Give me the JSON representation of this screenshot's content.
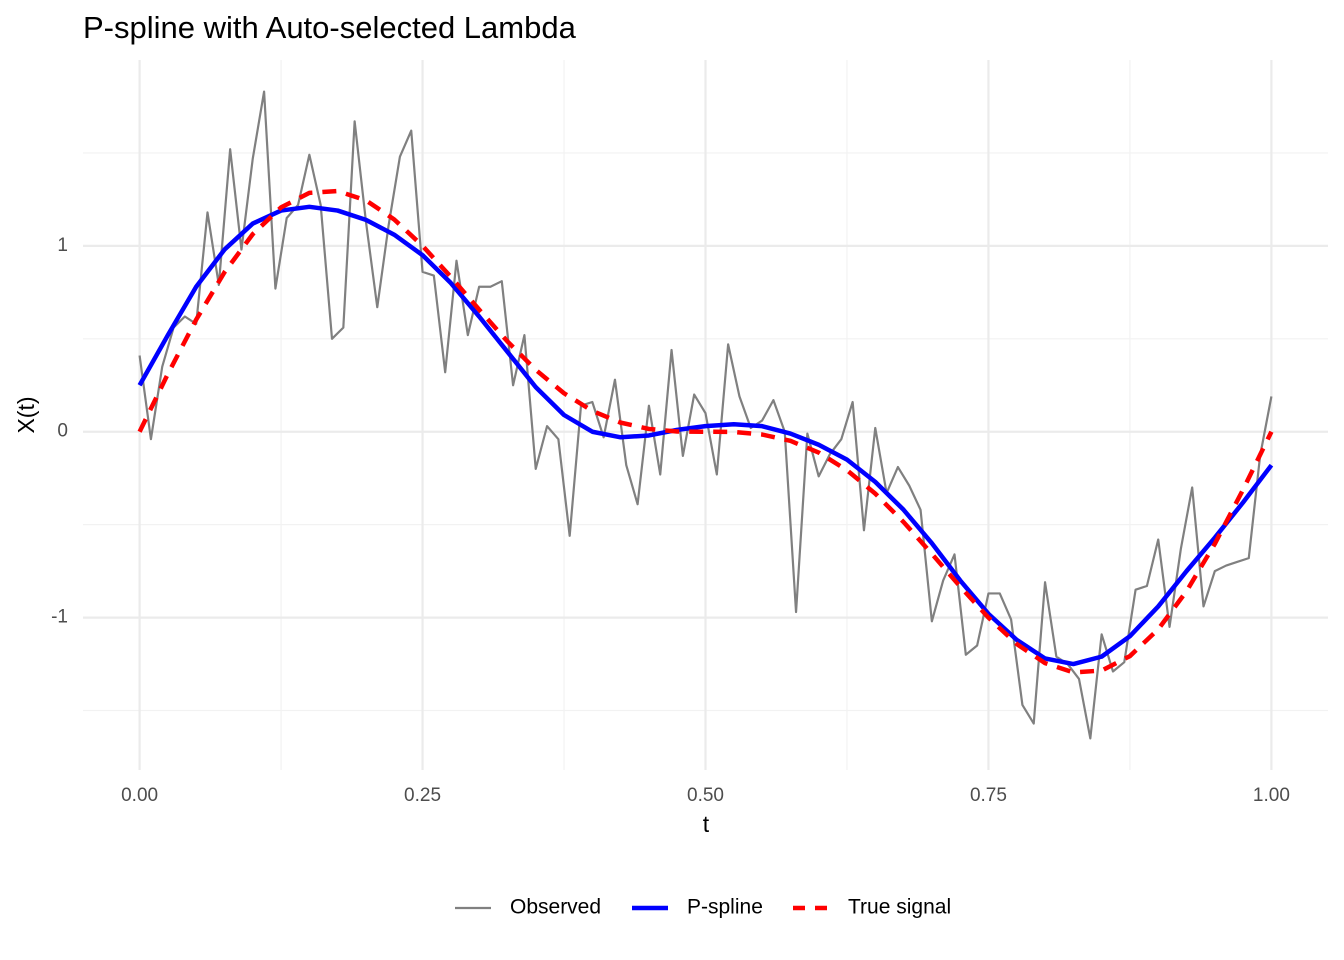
{
  "chart_data": {
    "type": "line",
    "title": "P-spline with Auto-selected Lambda",
    "x_label": "t",
    "y_label": "X(t)",
    "xlim": [
      -0.05,
      1.05
    ],
    "ylim": [
      -1.82,
      2.0
    ],
    "xticks": [
      {
        "value": 0,
        "label": "0.00"
      },
      {
        "value": 0.25,
        "label": "0.25"
      },
      {
        "value": 0.5,
        "label": "0.50"
      },
      {
        "value": 0.75,
        "label": "0.75"
      },
      {
        "value": 1,
        "label": "1.00"
      }
    ],
    "yticks": [
      -1,
      0,
      1
    ],
    "minor_xticks": [
      0.125,
      0.375,
      0.625,
      0.875
    ],
    "minor_yticks": [
      -1.5,
      -0.5,
      0.5,
      1.5
    ],
    "grid": true,
    "legend": "bottom",
    "series": [
      {
        "name": "Observed",
        "color": "#808080",
        "width": 2.2,
        "dash": "none",
        "x": [
          0,
          0.01,
          0.02,
          0.03,
          0.04,
          0.05,
          0.06,
          0.07,
          0.08,
          0.09,
          0.1,
          0.11,
          0.12,
          0.13,
          0.14,
          0.15,
          0.16,
          0.17,
          0.18,
          0.19,
          0.2,
          0.21,
          0.22,
          0.23,
          0.24,
          0.25,
          0.26,
          0.27,
          0.28,
          0.29,
          0.3,
          0.31,
          0.32,
          0.33,
          0.34,
          0.35,
          0.36,
          0.37,
          0.38,
          0.39,
          0.4,
          0.41,
          0.42,
          0.43,
          0.44,
          0.45,
          0.46,
          0.47,
          0.48,
          0.49,
          0.5,
          0.51,
          0.52,
          0.53,
          0.54,
          0.55,
          0.56,
          0.57,
          0.58,
          0.59,
          0.6,
          0.61,
          0.62,
          0.63,
          0.64,
          0.65,
          0.66,
          0.67,
          0.68,
          0.69,
          0.7,
          0.71,
          0.72,
          0.73,
          0.74,
          0.75,
          0.76,
          0.77,
          0.78,
          0.79,
          0.8,
          0.81,
          0.82,
          0.83,
          0.84,
          0.85,
          0.86,
          0.87,
          0.88,
          0.89,
          0.9,
          0.91,
          0.92,
          0.93,
          0.94,
          0.95,
          0.96,
          0.97,
          0.98,
          0.99,
          1
        ],
        "values": [
          0.41,
          -0.04,
          0.35,
          0.56,
          0.62,
          0.58,
          1.18,
          0.79,
          1.52,
          0.98,
          1.47,
          1.83,
          0.77,
          1.15,
          1.22,
          1.49,
          1.22,
          0.5,
          0.56,
          1.67,
          1.13,
          0.67,
          1.11,
          1.48,
          1.62,
          0.86,
          0.84,
          0.32,
          0.92,
          0.52,
          0.78,
          0.78,
          0.81,
          0.25,
          0.52,
          -0.2,
          0.03,
          -0.04,
          -0.56,
          0.14,
          0.16,
          -0.03,
          0.28,
          -0.18,
          -0.39,
          0.14,
          -0.23,
          0.44,
          -0.13,
          0.2,
          0.1,
          -0.23,
          0.47,
          0.19,
          0.02,
          0.06,
          0.17,
          0.0,
          -0.97,
          -0.01,
          -0.24,
          -0.12,
          -0.04,
          0.16,
          -0.53,
          0.02,
          -0.33,
          -0.19,
          -0.29,
          -0.42,
          -1.02,
          -0.8,
          -0.66,
          -1.2,
          -1.15,
          -0.87,
          -0.87,
          -1.01,
          -1.47,
          -1.57,
          -0.81,
          -1.21,
          -1.25,
          -1.33,
          -1.65,
          -1.09,
          -1.29,
          -1.24,
          -0.85,
          -0.83,
          -0.58,
          -1.05,
          -0.63,
          -0.3,
          -0.94,
          -0.75,
          -0.72,
          -0.7,
          -0.68,
          -0.13,
          0.19
        ]
      },
      {
        "name": "P-spline",
        "color": "#0000ff",
        "width": 4.5,
        "dash": "none",
        "x": [
          0,
          0.025,
          0.05,
          0.075,
          0.1,
          0.125,
          0.15,
          0.175,
          0.2,
          0.225,
          0.25,
          0.275,
          0.3,
          0.325,
          0.35,
          0.375,
          0.4,
          0.425,
          0.45,
          0.475,
          0.5,
          0.525,
          0.55,
          0.575,
          0.6,
          0.625,
          0.65,
          0.675,
          0.7,
          0.725,
          0.75,
          0.775,
          0.8,
          0.825,
          0.85,
          0.875,
          0.9,
          0.925,
          0.95,
          0.975,
          1
        ],
        "values": [
          0.25,
          0.52,
          0.78,
          0.98,
          1.12,
          1.19,
          1.21,
          1.19,
          1.14,
          1.06,
          0.95,
          0.8,
          0.62,
          0.43,
          0.24,
          0.09,
          0.0,
          -0.03,
          -0.02,
          0.01,
          0.03,
          0.04,
          0.03,
          -0.01,
          -0.07,
          -0.15,
          -0.27,
          -0.42,
          -0.6,
          -0.8,
          -0.98,
          -1.12,
          -1.22,
          -1.25,
          -1.21,
          -1.1,
          -0.94,
          -0.75,
          -0.57,
          -0.38,
          -0.18
        ]
      },
      {
        "name": "True signal",
        "color": "#ff0000",
        "width": 4.5,
        "dash": "14 10",
        "x": [
          0,
          0.025,
          0.05,
          0.075,
          0.1,
          0.125,
          0.15,
          0.175,
          0.2,
          0.225,
          0.25,
          0.275,
          0.3,
          0.325,
          0.35,
          0.375,
          0.4,
          0.425,
          0.45,
          0.475,
          0.5,
          0.525,
          0.55,
          0.575,
          0.6,
          0.625,
          0.65,
          0.675,
          0.7,
          0.725,
          0.75,
          0.775,
          0.8,
          0.825,
          0.85,
          0.875,
          0.9,
          0.925,
          0.95,
          0.975,
          1
        ],
        "values": [
          0,
          0.311,
          0.603,
          0.858,
          1.063,
          1.207,
          1.285,
          1.295,
          1.245,
          1.142,
          1.0,
          0.833,
          0.657,
          0.486,
          0.333,
          0.207,
          0.112,
          0.049,
          0.015,
          0.001,
          0,
          -0.001,
          -0.015,
          -0.049,
          -0.112,
          -0.207,
          -0.333,
          -0.486,
          -0.657,
          -0.833,
          -1.0,
          -1.142,
          -1.245,
          -1.295,
          -1.285,
          -1.207,
          -1.063,
          -0.858,
          -0.603,
          -0.311,
          0
        ]
      }
    ]
  }
}
